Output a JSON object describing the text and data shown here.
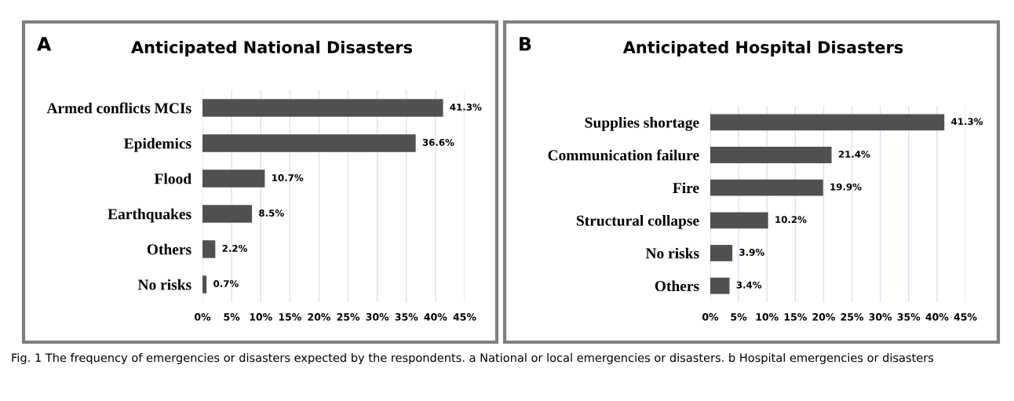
{
  "chart_data": [
    {
      "type": "bar",
      "orientation": "horizontal",
      "title": "Anticipated National Disasters",
      "annotations": [
        "A",
        "Fig. 1 The frequency of emergencies or disasters expected by the respondents. a National or local emergencies or disasters. b Hospital emergencies or disasters"
      ],
      "categories": [
        "Armed conflicts MCIs",
        "Epidemics",
        "Flood",
        "Earthquakes",
        "Others",
        "No risks"
      ],
      "values": [
        41.3,
        36.6,
        10.7,
        8.5,
        2.2,
        0.7
      ],
      "color": "#505050",
      "value_labels": [
        "41.3%",
        "36.6%",
        "10.7%",
        "8.5%",
        "2.2%",
        "0.7%"
      ],
      "xlim": [
        0,
        45
      ],
      "xticks": [
        {
          "value": 0,
          "label": "0%"
        },
        {
          "value": 5,
          "label": "5%"
        },
        {
          "value": 10,
          "label": "10%"
        },
        {
          "value": 15,
          "label": "15%"
        },
        {
          "value": 20,
          "label": "20%"
        },
        {
          "value": 25,
          "label": "25%"
        },
        {
          "value": 30,
          "label": "30%"
        },
        {
          "value": 35,
          "label": "35%"
        },
        {
          "value": 40,
          "label": "40%"
        },
        {
          "value": 45,
          "label": "45%"
        }
      ],
      "grid": "x"
    },
    {
      "type": "bar",
      "orientation": "horizontal",
      "title": "Anticipated Hospital Disasters",
      "annotations": [
        "B"
      ],
      "categories": [
        "Supplies shortage",
        "Communication failure",
        "Fire",
        "Structural collapse",
        "No risks",
        "Others"
      ],
      "values": [
        41.3,
        21.4,
        19.9,
        10.2,
        3.9,
        3.4
      ],
      "color": "#505050",
      "value_labels": [
        "41.3%",
        "21.4%",
        "19.9%",
        "10.2%",
        "3.9%",
        "3.4%"
      ],
      "xlim": [
        0,
        45
      ],
      "xticks": [
        {
          "value": 0,
          "label": "0%"
        },
        {
          "value": 5,
          "label": "5%"
        },
        {
          "value": 10,
          "label": "10%"
        },
        {
          "value": 15,
          "label": "15%"
        },
        {
          "value": 20,
          "label": "20%"
        },
        {
          "value": 25,
          "label": "25%"
        },
        {
          "value": 30,
          "label": "30%"
        },
        {
          "value": 35,
          "label": "35%"
        },
        {
          "value": 40,
          "label": "40%"
        },
        {
          "value": 45,
          "label": "45%"
        }
      ],
      "grid": "x"
    }
  ]
}
